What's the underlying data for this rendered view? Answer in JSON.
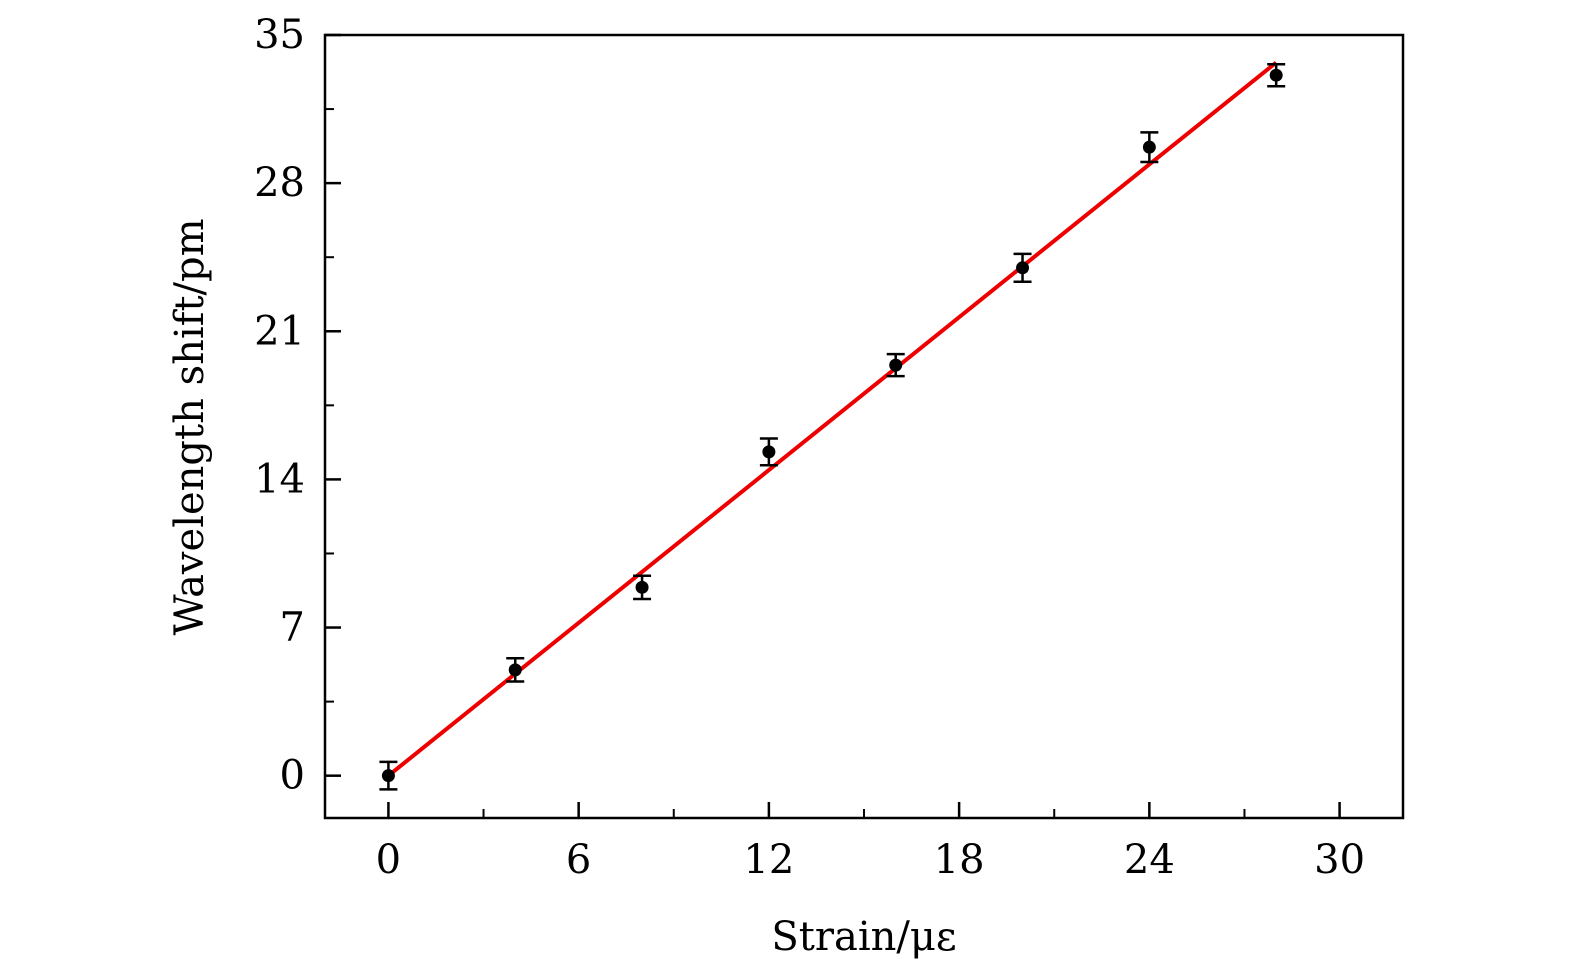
{
  "chart_data": {
    "type": "scatter",
    "title": "",
    "xlabel": "Strain/με",
    "ylabel": "Wavelength shift/pm",
    "xlim": [
      -2,
      32
    ],
    "ylim": [
      -2,
      35
    ],
    "xticks": [
      0,
      6,
      12,
      18,
      24,
      30
    ],
    "xtick_labels": [
      "0",
      "6",
      "12",
      "18",
      "24",
      "30"
    ],
    "yticks": [
      0,
      7,
      14,
      21,
      28,
      35
    ],
    "ytick_labels": [
      "0",
      "7",
      "14",
      "21",
      "28",
      "35"
    ],
    "grid": false,
    "series": [
      {
        "kind": "points-with-error-bars",
        "color": "#000000",
        "x": [
          0,
          4,
          8,
          12,
          16,
          20,
          24,
          28
        ],
        "y": [
          0,
          5.0,
          8.9,
          15.3,
          19.4,
          24.0,
          29.7,
          33.1
        ],
        "yerr": [
          0.65,
          0.55,
          0.55,
          0.63,
          0.52,
          0.66,
          0.7,
          0.52
        ]
      },
      {
        "kind": "linear-fit",
        "color": "#ee0000",
        "x": [
          0,
          28
        ],
        "y": [
          0,
          33.7
        ]
      }
    ]
  }
}
